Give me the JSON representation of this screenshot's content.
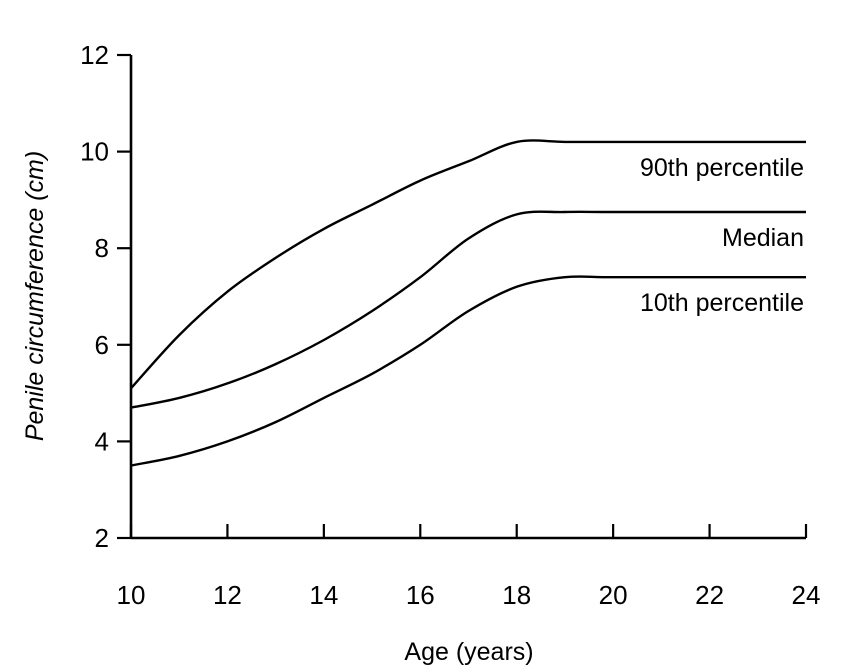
{
  "chart_data": {
    "type": "line",
    "title": "",
    "xlabel": "Age (years)",
    "ylabel": "Penile circumference (cm)",
    "xlim": [
      10,
      24
    ],
    "ylim": [
      2,
      12
    ],
    "xticks": [
      10,
      12,
      14,
      16,
      18,
      20,
      22,
      24
    ],
    "yticks": [
      2,
      4,
      6,
      8,
      10,
      12
    ],
    "grid": false,
    "legend": "none",
    "series": [
      {
        "name": "90th percentile",
        "points": [
          [
            10,
            5.1
          ],
          [
            11,
            6.2
          ],
          [
            12,
            7.1
          ],
          [
            13,
            7.8
          ],
          [
            14,
            8.4
          ],
          [
            15,
            8.9
          ],
          [
            16,
            9.4
          ],
          [
            17,
            9.8
          ],
          [
            18,
            10.2
          ],
          [
            19,
            10.2
          ],
          [
            20,
            10.2
          ],
          [
            22,
            10.2
          ],
          [
            24,
            10.2
          ]
        ]
      },
      {
        "name": "Median",
        "points": [
          [
            10,
            4.7
          ],
          [
            11,
            4.9
          ],
          [
            12,
            5.2
          ],
          [
            13,
            5.6
          ],
          [
            14,
            6.1
          ],
          [
            15,
            6.7
          ],
          [
            16,
            7.4
          ],
          [
            17,
            8.2
          ],
          [
            18,
            8.7
          ],
          [
            19,
            8.75
          ],
          [
            20,
            8.75
          ],
          [
            22,
            8.75
          ],
          [
            24,
            8.75
          ]
        ]
      },
      {
        "name": "10th percentile",
        "points": [
          [
            10,
            3.5
          ],
          [
            11,
            3.7
          ],
          [
            12,
            4.0
          ],
          [
            13,
            4.4
          ],
          [
            14,
            4.9
          ],
          [
            15,
            5.4
          ],
          [
            16,
            6.0
          ],
          [
            17,
            6.7
          ],
          [
            18,
            7.2
          ],
          [
            19,
            7.4
          ],
          [
            20,
            7.4
          ],
          [
            22,
            7.4
          ],
          [
            24,
            7.4
          ]
        ]
      }
    ]
  }
}
